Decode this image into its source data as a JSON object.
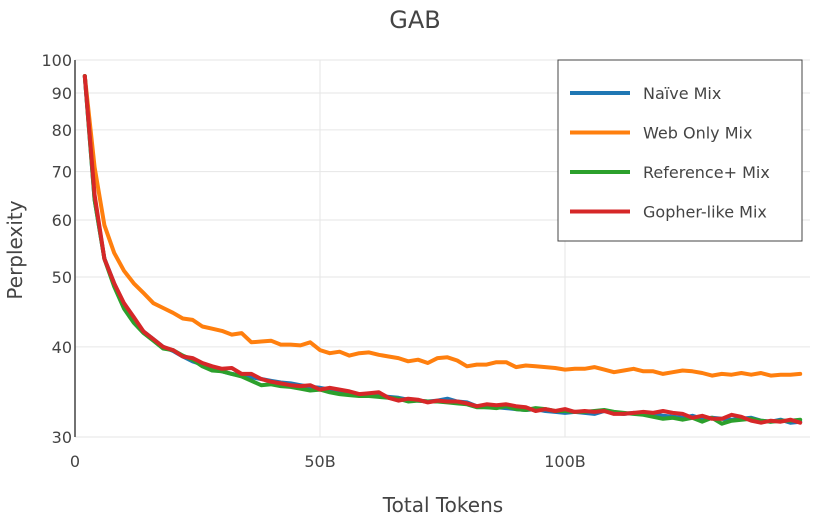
{
  "chart_data": {
    "type": "line",
    "title": "GAB",
    "xlabel": "Total Tokens",
    "ylabel": "Perplexity",
    "xlim": [
      0,
      150
    ],
    "ylim": [
      30,
      100
    ],
    "yscale": "log",
    "grid": true,
    "legend_position": "top-right",
    "x_ticks": [
      {
        "value": 0,
        "label": "0"
      },
      {
        "value": 50,
        "label": "50B"
      },
      {
        "value": 100,
        "label": "100B"
      }
    ],
    "y_ticks": [
      {
        "value": 30,
        "label": "30"
      },
      {
        "value": 40,
        "label": "40"
      },
      {
        "value": 50,
        "label": "50"
      },
      {
        "value": 60,
        "label": "60"
      },
      {
        "value": 70,
        "label": "70"
      },
      {
        "value": 80,
        "label": "80"
      },
      {
        "value": 90,
        "label": "90"
      },
      {
        "value": 100,
        "label": "100"
      }
    ],
    "series": [
      {
        "name": "Naïve Mix",
        "color": "#1f77b4",
        "x": [
          2,
          4,
          6,
          8,
          10,
          12,
          14,
          16,
          18,
          20,
          22,
          24,
          26,
          28,
          30,
          32,
          34,
          36,
          38,
          40,
          42,
          44,
          46,
          48,
          50,
          52,
          54,
          56,
          58,
          60,
          62,
          64,
          66,
          68,
          70,
          72,
          74,
          76,
          78,
          80,
          82,
          84,
          86,
          88,
          90,
          92,
          94,
          96,
          98,
          100,
          102,
          104,
          106,
          108,
          110,
          112,
          114,
          116,
          118,
          120,
          122,
          124,
          126,
          128,
          130,
          132,
          134,
          136,
          138,
          140,
          142,
          144,
          146,
          148
        ],
        "values": [
          95,
          64,
          53,
          49,
          45.5,
          43.5,
          42,
          41,
          40,
          39.5,
          38.8,
          38.2,
          37.8,
          37.2,
          37,
          36.7,
          36.5,
          36.3,
          36.1,
          35.9,
          35.7,
          35.6,
          35.4,
          35.2,
          35.1,
          34.9,
          34.7,
          34.5,
          34.4,
          34.3,
          34.2,
          34.1,
          34,
          33.8,
          33.7,
          33.6,
          33.7,
          33.9,
          33.6,
          33.5,
          33.1,
          33,
          33,
          32.9,
          32.8,
          32.7,
          32.8,
          32.6,
          32.5,
          32.4,
          32.5,
          32.4,
          32.3,
          32.6,
          32.4,
          32.3,
          32.4,
          32.3,
          32.2,
          32.1,
          32,
          31.9,
          32.1,
          31.8,
          31.9,
          31.8,
          31.7,
          31.8,
          31.9,
          31.6,
          31.5,
          31.7,
          31.4,
          31.5
        ]
      },
      {
        "name": "Web Only Mix",
        "color": "#ff7f0e",
        "x": [
          2,
          4,
          6,
          8,
          10,
          12,
          14,
          16,
          18,
          20,
          22,
          24,
          26,
          28,
          30,
          32,
          34,
          36,
          38,
          40,
          42,
          44,
          46,
          48,
          50,
          52,
          54,
          56,
          58,
          60,
          62,
          64,
          66,
          68,
          70,
          72,
          74,
          76,
          78,
          80,
          82,
          84,
          86,
          88,
          90,
          92,
          94,
          96,
          98,
          100,
          102,
          104,
          106,
          108,
          110,
          112,
          114,
          116,
          118,
          120,
          122,
          124,
          126,
          128,
          130,
          132,
          134,
          136,
          138,
          140,
          142,
          144,
          146,
          148
        ],
        "values": [
          95,
          71,
          59,
          54,
          51,
          49,
          47.5,
          46,
          45.3,
          44.6,
          43.8,
          43.6,
          42.7,
          42.4,
          42.1,
          41.6,
          41.8,
          40.6,
          40.7,
          40.8,
          40.3,
          40.3,
          40.2,
          40.6,
          39.6,
          39.2,
          39.4,
          38.9,
          39.2,
          39.3,
          39,
          38.8,
          38.6,
          38.2,
          38.4,
          38,
          38.6,
          38.7,
          38.3,
          37.6,
          37.8,
          37.8,
          38.1,
          38.1,
          37.5,
          37.7,
          37.6,
          37.5,
          37.4,
          37.2,
          37.3,
          37.3,
          37.5,
          37.2,
          36.9,
          37.1,
          37.3,
          37,
          37,
          36.7,
          36.9,
          37.1,
          37,
          36.8,
          36.5,
          36.7,
          36.6,
          36.8,
          36.6,
          36.8,
          36.5,
          36.6,
          36.6,
          36.7
        ]
      },
      {
        "name": "Reference+ Mix",
        "color": "#2ca02c",
        "x": [
          2,
          4,
          6,
          8,
          10,
          12,
          14,
          16,
          18,
          20,
          22,
          24,
          26,
          28,
          30,
          32,
          34,
          36,
          38,
          40,
          42,
          44,
          46,
          48,
          50,
          52,
          54,
          56,
          58,
          60,
          62,
          64,
          66,
          68,
          70,
          72,
          74,
          76,
          78,
          80,
          82,
          84,
          86,
          88,
          90,
          92,
          94,
          96,
          98,
          100,
          102,
          104,
          106,
          108,
          110,
          112,
          114,
          116,
          118,
          120,
          122,
          124,
          126,
          128,
          130,
          132,
          134,
          136,
          138,
          140,
          142,
          144,
          146,
          148
        ],
        "values": [
          95,
          64,
          53,
          48.5,
          45.2,
          43.2,
          41.8,
          40.8,
          39.8,
          39.6,
          38.9,
          38.4,
          37.6,
          37.1,
          37,
          36.7,
          36.4,
          35.9,
          35.4,
          35.5,
          35.3,
          35.2,
          35,
          34.8,
          34.9,
          34.6,
          34.4,
          34.3,
          34.2,
          34.2,
          34.1,
          34,
          33.9,
          33.6,
          33.7,
          33.6,
          33.6,
          33.5,
          33.4,
          33.3,
          33,
          33,
          32.9,
          33.1,
          32.8,
          32.7,
          32.9,
          32.8,
          32.6,
          32.6,
          32.5,
          32.5,
          32.6,
          32.7,
          32.5,
          32.4,
          32.3,
          32.2,
          32,
          31.8,
          31.9,
          31.7,
          31.9,
          31.5,
          31.9,
          31.3,
          31.6,
          31.7,
          31.8,
          31.6,
          31.5,
          31.6,
          31.6,
          31.7
        ]
      },
      {
        "name": "Gopher-like Mix",
        "color": "#d62728",
        "x": [
          2,
          4,
          6,
          8,
          10,
          12,
          14,
          16,
          18,
          20,
          22,
          24,
          26,
          28,
          30,
          32,
          34,
          36,
          38,
          40,
          42,
          44,
          46,
          48,
          50,
          52,
          54,
          56,
          58,
          60,
          62,
          64,
          66,
          68,
          70,
          72,
          74,
          76,
          78,
          80,
          82,
          84,
          86,
          88,
          90,
          92,
          94,
          96,
          98,
          100,
          102,
          104,
          106,
          108,
          110,
          112,
          114,
          116,
          118,
          120,
          122,
          124,
          126,
          128,
          130,
          132,
          134,
          136,
          138,
          140,
          142,
          144,
          146,
          148
        ],
        "values": [
          95,
          65,
          53,
          49,
          46,
          44,
          42,
          41,
          40,
          39.6,
          38.8,
          38.6,
          38,
          37.6,
          37.3,
          37.4,
          36.7,
          36.7,
          36.1,
          35.8,
          35.6,
          35.4,
          35.3,
          35.4,
          34.9,
          35.1,
          34.9,
          34.7,
          34.4,
          34.5,
          34.6,
          34,
          33.7,
          33.9,
          33.8,
          33.5,
          33.7,
          33.6,
          33.6,
          33.4,
          33.1,
          33.3,
          33.2,
          33.3,
          33.1,
          33,
          32.6,
          32.8,
          32.6,
          32.8,
          32.5,
          32.6,
          32.5,
          32.6,
          32.3,
          32.3,
          32.4,
          32.5,
          32.4,
          32.6,
          32.4,
          32.3,
          31.9,
          32.1,
          31.8,
          31.8,
          32.2,
          32,
          31.6,
          31.4,
          31.6,
          31.5,
          31.7,
          31.4
        ]
      }
    ]
  }
}
